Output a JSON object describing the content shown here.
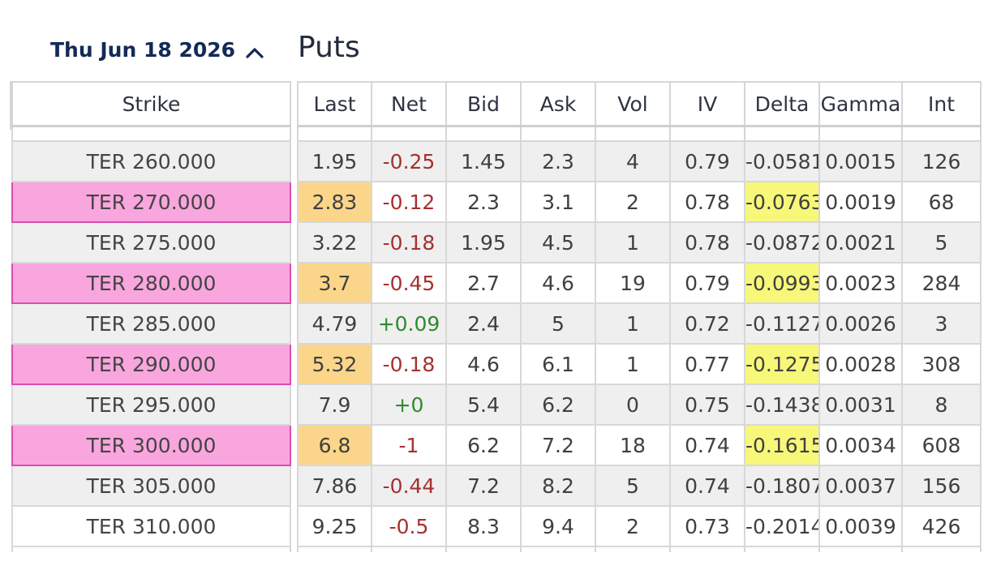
{
  "expiry": {
    "label": "Thu Jun 18 2026",
    "chevron_icon": "chevron-up-icon"
  },
  "title": "Puts",
  "strike_header": "Strike",
  "columns": [
    "Last",
    "Net",
    "Bid",
    "Ask",
    "Vol",
    "IV",
    "Delta",
    "Gamma",
    "Int"
  ],
  "colors": {
    "highlight_strike": "#f9a6de",
    "highlight_last": "#fbd68a",
    "highlight_delta": "#f7f77a",
    "negative": "#a63030",
    "positive": "#2f8a2f"
  },
  "rows": [
    {
      "strike": "TER 260.000",
      "last": "1.95",
      "net": "-0.25",
      "bid": "1.45",
      "ask": "2.3",
      "vol": "4",
      "iv": "0.79",
      "delta": "-0.0581",
      "gamma": "0.0015",
      "int": "126",
      "highlighted": false
    },
    {
      "strike": "TER 270.000",
      "last": "2.83",
      "net": "-0.12",
      "bid": "2.3",
      "ask": "3.1",
      "vol": "2",
      "iv": "0.78",
      "delta": "-0.0763",
      "gamma": "0.0019",
      "int": "68",
      "highlighted": true
    },
    {
      "strike": "TER 275.000",
      "last": "3.22",
      "net": "-0.18",
      "bid": "1.95",
      "ask": "4.5",
      "vol": "1",
      "iv": "0.78",
      "delta": "-0.0872",
      "gamma": "0.0021",
      "int": "5",
      "highlighted": false
    },
    {
      "strike": "TER 280.000",
      "last": "3.7",
      "net": "-0.45",
      "bid": "2.7",
      "ask": "4.6",
      "vol": "19",
      "iv": "0.79",
      "delta": "-0.0993",
      "gamma": "0.0023",
      "int": "284",
      "highlighted": true
    },
    {
      "strike": "TER 285.000",
      "last": "4.79",
      "net": "+0.09",
      "bid": "2.4",
      "ask": "5",
      "vol": "1",
      "iv": "0.72",
      "delta": "-0.1127",
      "gamma": "0.0026",
      "int": "3",
      "highlighted": false
    },
    {
      "strike": "TER 290.000",
      "last": "5.32",
      "net": "-0.18",
      "bid": "4.6",
      "ask": "6.1",
      "vol": "1",
      "iv": "0.77",
      "delta": "-0.1275",
      "gamma": "0.0028",
      "int": "308",
      "highlighted": true
    },
    {
      "strike": "TER 295.000",
      "last": "7.9",
      "net": "+0",
      "bid": "5.4",
      "ask": "6.2",
      "vol": "0",
      "iv": "0.75",
      "delta": "-0.1438",
      "gamma": "0.0031",
      "int": "8",
      "highlighted": false
    },
    {
      "strike": "TER 300.000",
      "last": "6.8",
      "net": "-1",
      "bid": "6.2",
      "ask": "7.2",
      "vol": "18",
      "iv": "0.74",
      "delta": "-0.1615",
      "gamma": "0.0034",
      "int": "608",
      "highlighted": true
    },
    {
      "strike": "TER 305.000",
      "last": "7.86",
      "net": "-0.44",
      "bid": "7.2",
      "ask": "8.2",
      "vol": "5",
      "iv": "0.74",
      "delta": "-0.1807",
      "gamma": "0.0037",
      "int": "156",
      "highlighted": false
    },
    {
      "strike": "TER 310.000",
      "last": "9.25",
      "net": "-0.5",
      "bid": "8.3",
      "ask": "9.4",
      "vol": "2",
      "iv": "0.73",
      "delta": "-0.2014",
      "gamma": "0.0039",
      "int": "426",
      "highlighted": false
    }
  ]
}
